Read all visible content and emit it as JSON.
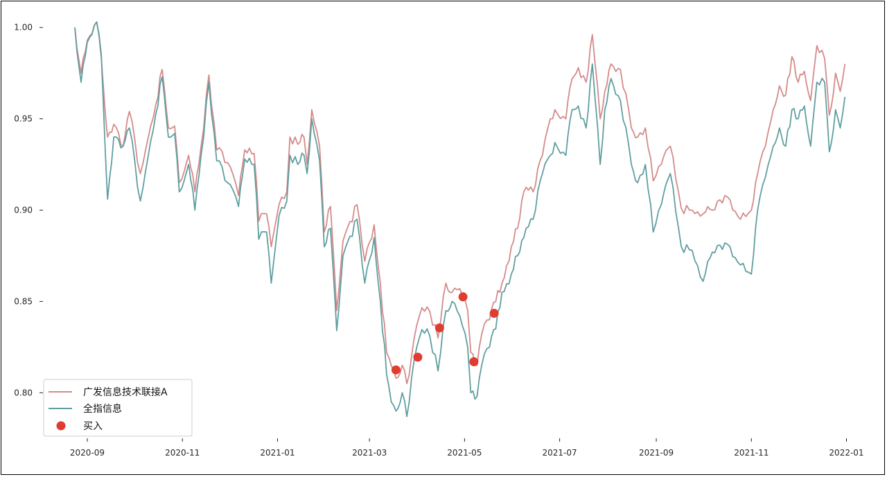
{
  "chart_data": {
    "type": "line",
    "title": "",
    "xlabel": "",
    "ylabel": "",
    "xlim": [
      "2020-08-04",
      "2022-01-15"
    ],
    "ylim": [
      0.777,
      1.012
    ],
    "x_ticks": [
      "2020-09-01",
      "2020-11-01",
      "2021-01-01",
      "2021-03-01",
      "2021-05-01",
      "2021-07-01",
      "2021-09-01",
      "2021-11-01",
      "2022-01-01"
    ],
    "x_tick_labels": [
      "2020-09",
      "2020-11",
      "2021-01",
      "2021-03",
      "2021-05",
      "2021-07",
      "2021-09",
      "2021-11",
      "2022-01"
    ],
    "y_ticks": [
      0.8,
      0.85,
      0.9,
      0.95,
      1.0
    ],
    "y_tick_labels": [
      "0.80",
      "0.85",
      "0.90",
      "0.95",
      "1.00"
    ],
    "grid": false,
    "legend_position": "lower-left",
    "series": [
      {
        "name": "广发信息技术联接A",
        "color": "#d48a8a",
        "points": [
          [
            "2020-08-24",
            1.0
          ],
          [
            "2020-08-28",
            0.975
          ],
          [
            "2020-09-01",
            0.993
          ],
          [
            "2020-09-07",
            1.003
          ],
          [
            "2020-09-10",
            0.983
          ],
          [
            "2020-09-14",
            0.94
          ],
          [
            "2020-09-18",
            0.947
          ],
          [
            "2020-09-24",
            0.935
          ],
          [
            "2020-09-28",
            0.954
          ],
          [
            "2020-10-05",
            0.92
          ],
          [
            "2020-10-15",
            0.958
          ],
          [
            "2020-10-19",
            0.977
          ],
          [
            "2020-10-23",
            0.945
          ],
          [
            "2020-10-27",
            0.946
          ],
          [
            "2020-10-30",
            0.915
          ],
          [
            "2020-11-05",
            0.93
          ],
          [
            "2020-11-09",
            0.91
          ],
          [
            "2020-11-13",
            0.935
          ],
          [
            "2020-11-18",
            0.974
          ],
          [
            "2020-11-23",
            0.933
          ],
          [
            "2020-11-30",
            0.926
          ],
          [
            "2020-12-07",
            0.908
          ],
          [
            "2020-12-11",
            0.933
          ],
          [
            "2020-12-17",
            0.931
          ],
          [
            "2020-12-20",
            0.894
          ],
          [
            "2020-12-25",
            0.898
          ],
          [
            "2020-12-28",
            0.88
          ],
          [
            "2021-01-02",
            0.903
          ],
          [
            "2021-01-07",
            0.91
          ],
          [
            "2021-01-09",
            0.94
          ],
          [
            "2021-01-14",
            0.936
          ],
          [
            "2021-01-18",
            0.94
          ],
          [
            "2021-01-20",
            0.925
          ],
          [
            "2021-01-23",
            0.955
          ],
          [
            "2021-01-28",
            0.935
          ],
          [
            "2021-01-31",
            0.888
          ],
          [
            "2021-02-04",
            0.902
          ],
          [
            "2021-02-08",
            0.845
          ],
          [
            "2021-02-12",
            0.883
          ],
          [
            "2021-02-21",
            0.903
          ],
          [
            "2021-02-26",
            0.872
          ],
          [
            "2021-03-04",
            0.892
          ],
          [
            "2021-03-08",
            0.86
          ],
          [
            "2021-03-12",
            0.822
          ],
          [
            "2021-03-15",
            0.815
          ],
          [
            "2021-03-18",
            0.808
          ],
          [
            "2021-03-22",
            0.815
          ],
          [
            "2021-03-25",
            0.805
          ],
          [
            "2021-03-28",
            0.82
          ],
          [
            "2021-04-02",
            0.842
          ],
          [
            "2021-04-07",
            0.847
          ],
          [
            "2021-04-14",
            0.83
          ],
          [
            "2021-04-19",
            0.86
          ],
          [
            "2021-04-23",
            0.855
          ],
          [
            "2021-04-28",
            0.857
          ],
          [
            "2021-05-03",
            0.845
          ],
          [
            "2021-05-05",
            0.822
          ],
          [
            "2021-05-09",
            0.815
          ],
          [
            "2021-05-12",
            0.832
          ],
          [
            "2021-05-17",
            0.84
          ],
          [
            "2021-05-21",
            0.85
          ],
          [
            "2021-05-25",
            0.86
          ],
          [
            "2021-05-31",
            0.88
          ],
          [
            "2021-06-04",
            0.89
          ],
          [
            "2021-06-08",
            0.91
          ],
          [
            "2021-06-14",
            0.91
          ],
          [
            "2021-06-20",
            0.93
          ],
          [
            "2021-06-25",
            0.95
          ],
          [
            "2021-06-28",
            0.955
          ],
          [
            "2021-07-05",
            0.95
          ],
          [
            "2021-07-09",
            0.972
          ],
          [
            "2021-07-13",
            0.978
          ],
          [
            "2021-07-18",
            0.97
          ],
          [
            "2021-07-22",
            0.996
          ],
          [
            "2021-07-27",
            0.95
          ],
          [
            "2021-07-30",
            0.965
          ],
          [
            "2021-08-03",
            0.98
          ],
          [
            "2021-08-09",
            0.977
          ],
          [
            "2021-08-16",
            0.945
          ],
          [
            "2021-08-20",
            0.94
          ],
          [
            "2021-08-25",
            0.945
          ],
          [
            "2021-08-30",
            0.916
          ],
          [
            "2021-09-06",
            0.93
          ],
          [
            "2021-09-10",
            0.935
          ],
          [
            "2021-09-17",
            0.901
          ],
          [
            "2021-09-24",
            0.9
          ],
          [
            "2021-10-01",
            0.898
          ],
          [
            "2021-10-07",
            0.9
          ],
          [
            "2021-10-15",
            0.908
          ],
          [
            "2021-10-25",
            0.895
          ],
          [
            "2021-11-01",
            0.9
          ],
          [
            "2021-11-05",
            0.92
          ],
          [
            "2021-11-10",
            0.935
          ],
          [
            "2021-11-15",
            0.955
          ],
          [
            "2021-11-19",
            0.968
          ],
          [
            "2021-11-23",
            0.963
          ],
          [
            "2021-11-27",
            0.984
          ],
          [
            "2021-12-01",
            0.97
          ],
          [
            "2021-12-05",
            0.976
          ],
          [
            "2021-12-09",
            0.96
          ],
          [
            "2021-12-13",
            0.99
          ],
          [
            "2021-12-18",
            0.983
          ],
          [
            "2021-12-21",
            0.952
          ],
          [
            "2021-12-25",
            0.975
          ],
          [
            "2021-12-28",
            0.965
          ],
          [
            "2021-12-31",
            0.98
          ]
        ]
      },
      {
        "name": "全指信息",
        "color": "#5f9ea0",
        "points": [
          [
            "2020-08-24",
            1.0
          ],
          [
            "2020-08-28",
            0.97
          ],
          [
            "2020-09-01",
            0.992
          ],
          [
            "2020-09-07",
            1.003
          ],
          [
            "2020-09-10",
            0.985
          ],
          [
            "2020-09-14",
            0.906
          ],
          [
            "2020-09-18",
            0.94
          ],
          [
            "2020-09-24",
            0.935
          ],
          [
            "2020-09-28",
            0.945
          ],
          [
            "2020-10-05",
            0.905
          ],
          [
            "2020-10-15",
            0.953
          ],
          [
            "2020-10-19",
            0.973
          ],
          [
            "2020-10-23",
            0.94
          ],
          [
            "2020-10-27",
            0.942
          ],
          [
            "2020-10-30",
            0.91
          ],
          [
            "2020-11-05",
            0.925
          ],
          [
            "2020-11-09",
            0.9
          ],
          [
            "2020-11-13",
            0.93
          ],
          [
            "2020-11-18",
            0.97
          ],
          [
            "2020-11-23",
            0.927
          ],
          [
            "2020-11-30",
            0.915
          ],
          [
            "2020-12-07",
            0.902
          ],
          [
            "2020-12-11",
            0.928
          ],
          [
            "2020-12-17",
            0.925
          ],
          [
            "2020-12-20",
            0.884
          ],
          [
            "2020-12-25",
            0.888
          ],
          [
            "2020-12-28",
            0.86
          ],
          [
            "2021-01-02",
            0.897
          ],
          [
            "2021-01-07",
            0.905
          ],
          [
            "2021-01-09",
            0.93
          ],
          [
            "2021-01-14",
            0.925
          ],
          [
            "2021-01-18",
            0.93
          ],
          [
            "2021-01-20",
            0.92
          ],
          [
            "2021-01-23",
            0.95
          ],
          [
            "2021-01-28",
            0.927
          ],
          [
            "2021-01-31",
            0.88
          ],
          [
            "2021-02-04",
            0.89
          ],
          [
            "2021-02-08",
            0.834
          ],
          [
            "2021-02-12",
            0.875
          ],
          [
            "2021-02-21",
            0.895
          ],
          [
            "2021-02-26",
            0.86
          ],
          [
            "2021-03-04",
            0.885
          ],
          [
            "2021-03-08",
            0.85
          ],
          [
            "2021-03-12",
            0.81
          ],
          [
            "2021-03-15",
            0.795
          ],
          [
            "2021-03-18",
            0.79
          ],
          [
            "2021-03-22",
            0.8
          ],
          [
            "2021-03-25",
            0.787
          ],
          [
            "2021-03-28",
            0.808
          ],
          [
            "2021-04-02",
            0.83
          ],
          [
            "2021-04-07",
            0.835
          ],
          [
            "2021-04-14",
            0.812
          ],
          [
            "2021-04-19",
            0.845
          ],
          [
            "2021-04-23",
            0.85
          ],
          [
            "2021-04-28",
            0.842
          ],
          [
            "2021-05-03",
            0.825
          ],
          [
            "2021-05-05",
            0.8
          ],
          [
            "2021-05-09",
            0.798
          ],
          [
            "2021-05-12",
            0.815
          ],
          [
            "2021-05-17",
            0.825
          ],
          [
            "2021-05-21",
            0.835
          ],
          [
            "2021-05-25",
            0.855
          ],
          [
            "2021-05-31",
            0.865
          ],
          [
            "2021-06-04",
            0.875
          ],
          [
            "2021-06-08",
            0.885
          ],
          [
            "2021-06-14",
            0.895
          ],
          [
            "2021-06-20",
            0.92
          ],
          [
            "2021-06-25",
            0.93
          ],
          [
            "2021-06-28",
            0.937
          ],
          [
            "2021-07-05",
            0.93
          ],
          [
            "2021-07-09",
            0.955
          ],
          [
            "2021-07-13",
            0.957
          ],
          [
            "2021-07-18",
            0.945
          ],
          [
            "2021-07-22",
            0.98
          ],
          [
            "2021-07-27",
            0.925
          ],
          [
            "2021-07-30",
            0.955
          ],
          [
            "2021-08-03",
            0.972
          ],
          [
            "2021-08-09",
            0.96
          ],
          [
            "2021-08-16",
            0.925
          ],
          [
            "2021-08-20",
            0.915
          ],
          [
            "2021-08-25",
            0.925
          ],
          [
            "2021-08-30",
            0.888
          ],
          [
            "2021-09-06",
            0.91
          ],
          [
            "2021-09-10",
            0.92
          ],
          [
            "2021-09-17",
            0.88
          ],
          [
            "2021-09-24",
            0.878
          ],
          [
            "2021-10-01",
            0.861
          ],
          [
            "2021-10-07",
            0.877
          ],
          [
            "2021-10-15",
            0.882
          ],
          [
            "2021-10-25",
            0.87
          ],
          [
            "2021-11-01",
            0.865
          ],
          [
            "2021-11-05",
            0.9
          ],
          [
            "2021-11-10",
            0.918
          ],
          [
            "2021-11-15",
            0.935
          ],
          [
            "2021-11-19",
            0.945
          ],
          [
            "2021-11-23",
            0.935
          ],
          [
            "2021-11-27",
            0.955
          ],
          [
            "2021-12-01",
            0.95
          ],
          [
            "2021-12-05",
            0.957
          ],
          [
            "2021-12-09",
            0.935
          ],
          [
            "2021-12-13",
            0.97
          ],
          [
            "2021-12-18",
            0.97
          ],
          [
            "2021-12-21",
            0.932
          ],
          [
            "2021-12-25",
            0.955
          ],
          [
            "2021-12-28",
            0.945
          ],
          [
            "2021-12-31",
            0.962
          ]
        ]
      }
    ],
    "markers": {
      "name": "买入",
      "color": "#e03c31",
      "points": [
        [
          "2021-03-18",
          0.8125
        ],
        [
          "2021-04-01",
          0.8195
        ],
        [
          "2021-04-15",
          0.8355
        ],
        [
          "2021-04-30",
          0.8525
        ],
        [
          "2021-05-07",
          0.817
        ],
        [
          "2021-05-20",
          0.8435
        ]
      ]
    }
  }
}
